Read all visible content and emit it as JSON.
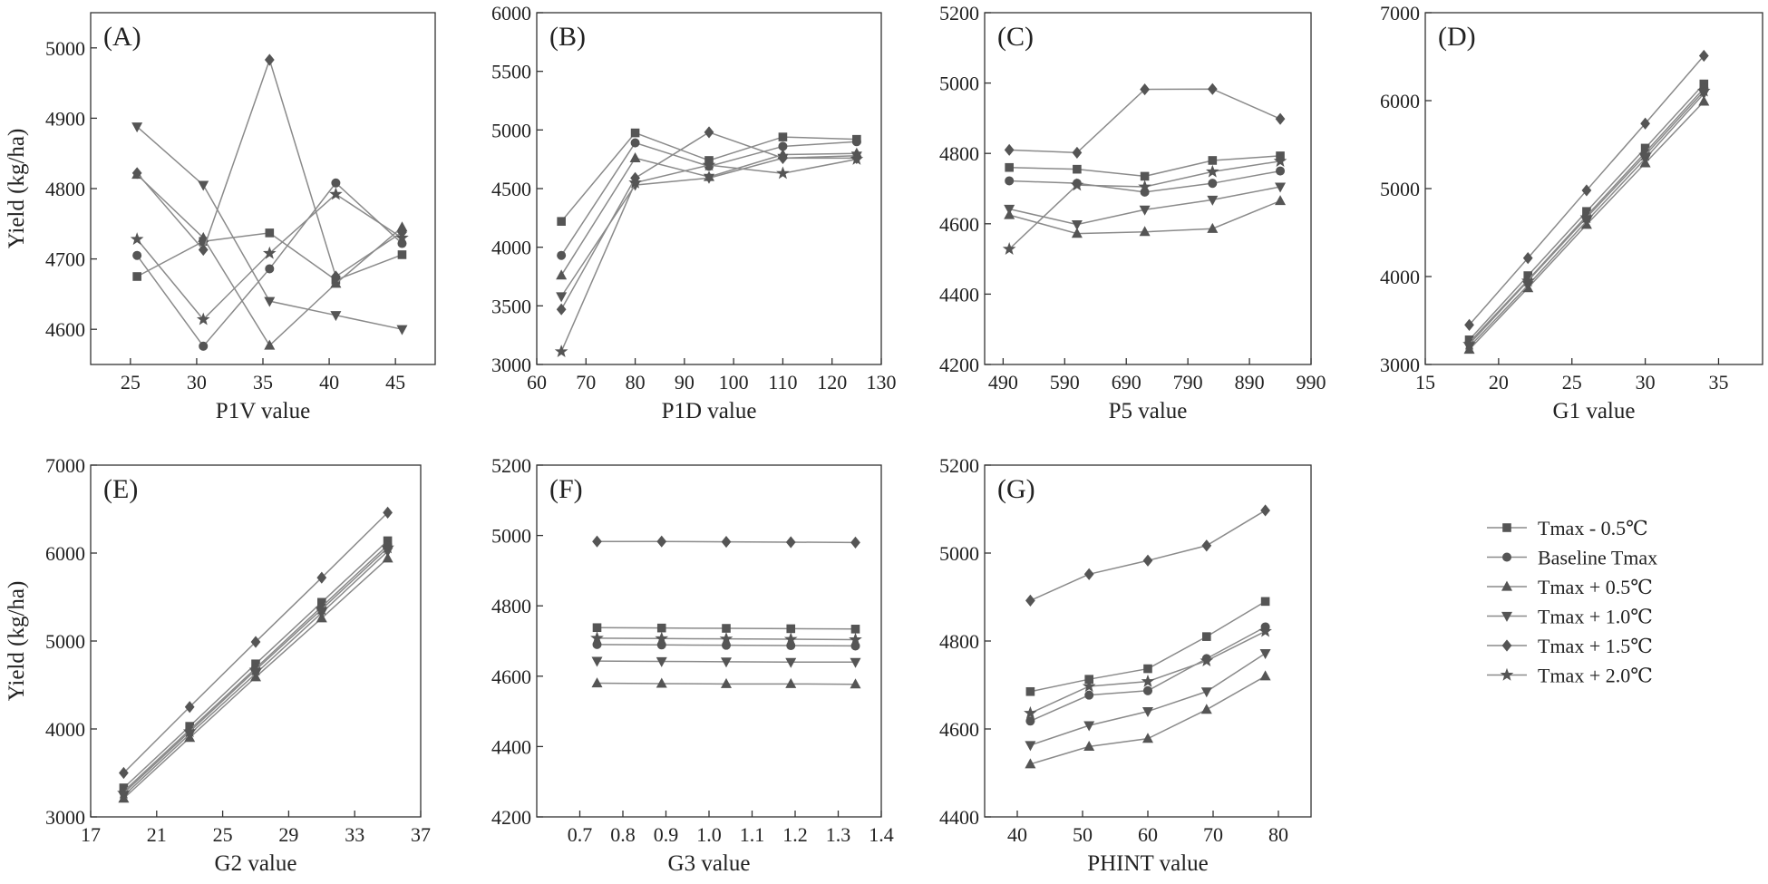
{
  "legend": {
    "entries": [
      {
        "series_index": 0,
        "label": "Tmax - 0.5℃",
        "marker": "square"
      },
      {
        "series_index": 1,
        "label": "Baseline Tmax",
        "marker": "circle"
      },
      {
        "series_index": 2,
        "label": "Tmax + 0.5℃",
        "marker": "triangle-up"
      },
      {
        "series_index": 3,
        "label": "Tmax + 1.0℃",
        "marker": "triangle-down"
      },
      {
        "series_index": 4,
        "label": "Tmax + 1.5℃",
        "marker": "diamond"
      },
      {
        "series_index": 5,
        "label": "Tmax + 2.0℃",
        "marker": "star"
      }
    ]
  },
  "colors": {
    "line": "#8a8a8a",
    "marker": "#555555",
    "axis": "#333333"
  },
  "chart_data": [
    {
      "type": "line",
      "panel_label": "(A)",
      "xlabel": "P1V value",
      "ylabel": "Yield (kg/ha)",
      "xlim": [
        22,
        48
      ],
      "ylim": [
        4550,
        5050
      ],
      "xticks": [
        25,
        30,
        35,
        40,
        45
      ],
      "xtick_labels": [
        "25",
        "30",
        "35",
        "40",
        "45"
      ],
      "yticks": [
        4600,
        4700,
        4800,
        4900,
        5000
      ],
      "ytick_labels": [
        "4600",
        "4700",
        "4800",
        "4900",
        "5000"
      ],
      "x": [
        25.5,
        30.5,
        35.5,
        40.5,
        45.5
      ],
      "series": [
        {
          "name": "Tmax - 0.5℃",
          "values": [
            4675,
            4725,
            4737,
            4670,
            4706
          ]
        },
        {
          "name": "Baseline Tmax",
          "values": [
            4705,
            4576,
            4686,
            4808,
            4722
          ]
        },
        {
          "name": "Tmax + 0.5℃",
          "values": [
            4820,
            4730,
            4577,
            4665,
            4745
          ]
        },
        {
          "name": "Tmax + 1.0℃",
          "values": [
            4888,
            4805,
            4640,
            4620,
            4600
          ]
        },
        {
          "name": "Tmax + 1.5℃",
          "values": [
            4822,
            4713,
            4983,
            4675,
            4738
          ]
        },
        {
          "name": "Tmax + 2.0℃",
          "values": [
            4728,
            4614,
            4708,
            4792,
            4730
          ]
        }
      ]
    },
    {
      "type": "line",
      "panel_label": "(B)",
      "xlabel": "P1D value",
      "ylabel": "",
      "xlim": [
        60,
        130
      ],
      "ylim": [
        3000,
        6000
      ],
      "xticks": [
        60,
        70,
        80,
        90,
        100,
        110,
        120,
        130
      ],
      "xtick_labels": [
        "60",
        "70",
        "80",
        "90",
        "100",
        "110",
        "120",
        "130"
      ],
      "yticks": [
        3000,
        3500,
        4000,
        4500,
        5000,
        5500,
        6000
      ],
      "ytick_labels": [
        "3000",
        "3500",
        "4000",
        "4500",
        "5000",
        "5500",
        "6000"
      ],
      "x": [
        65,
        80,
        95,
        110,
        125
      ],
      "series": [
        {
          "name": "Tmax - 0.5℃",
          "values": [
            4220,
            4975,
            4740,
            4940,
            4920
          ]
        },
        {
          "name": "Baseline Tmax",
          "values": [
            3930,
            4890,
            4690,
            4860,
            4900
          ]
        },
        {
          "name": "Tmax + 0.5℃",
          "values": [
            3760,
            4760,
            4600,
            4790,
            4800
          ]
        },
        {
          "name": "Tmax + 1.0℃",
          "values": [
            3580,
            4530,
            4590,
            4760,
            4780
          ]
        },
        {
          "name": "Tmax + 1.5℃",
          "values": [
            3470,
            4590,
            4980,
            4760,
            4760
          ]
        },
        {
          "name": "Tmax + 2.0℃",
          "values": [
            3110,
            4550,
            4700,
            4630,
            4750
          ]
        }
      ]
    },
    {
      "type": "line",
      "panel_label": "(C)",
      "xlabel": "P5 value",
      "ylabel": "",
      "xlim": [
        460,
        990
      ],
      "ylim": [
        4200,
        5200
      ],
      "xticks": [
        490,
        590,
        690,
        790,
        890,
        990
      ],
      "xtick_labels": [
        "490",
        "590",
        "690",
        "790",
        "890",
        "990"
      ],
      "yticks": [
        4200,
        4400,
        4600,
        4800,
        5000,
        5200
      ],
      "ytick_labels": [
        "4200",
        "4400",
        "4600",
        "4800",
        "5000",
        "5200"
      ],
      "x": [
        500,
        610,
        720,
        830,
        940
      ],
      "series": [
        {
          "name": "Tmax - 0.5℃",
          "values": [
            4760,
            4755,
            4735,
            4780,
            4793
          ]
        },
        {
          "name": "Baseline Tmax",
          "values": [
            4722,
            4715,
            4690,
            4715,
            4750
          ]
        },
        {
          "name": "Tmax + 0.5℃",
          "values": [
            4625,
            4572,
            4577,
            4586,
            4665
          ]
        },
        {
          "name": "Tmax + 1.0℃",
          "values": [
            4642,
            4598,
            4640,
            4668,
            4705
          ]
        },
        {
          "name": "Tmax + 1.5℃",
          "values": [
            4810,
            4802,
            4982,
            4983,
            4898
          ]
        },
        {
          "name": "Tmax + 2.0℃",
          "values": [
            4528,
            4710,
            4705,
            4748,
            4778
          ]
        }
      ]
    },
    {
      "type": "line",
      "panel_label": "(D)",
      "xlabel": "G1 value",
      "ylabel": "",
      "xlim": [
        15,
        38
      ],
      "ylim": [
        3000,
        7000
      ],
      "xticks": [
        15,
        20,
        25,
        30,
        35
      ],
      "xtick_labels": [
        "15",
        "20",
        "25",
        "30",
        "35"
      ],
      "yticks": [
        3000,
        4000,
        5000,
        6000,
        7000
      ],
      "ytick_labels": [
        "3000",
        "4000",
        "5000",
        "6000",
        "7000"
      ],
      "x": [
        18,
        22,
        26,
        30,
        34
      ],
      "series": [
        {
          "name": "Tmax - 0.5℃",
          "values": [
            3280,
            4010,
            4740,
            5460,
            6190
          ]
        },
        {
          "name": "Baseline Tmax",
          "values": [
            3250,
            3960,
            4690,
            5410,
            6140
          ]
        },
        {
          "name": "Tmax + 0.5℃",
          "values": [
            3170,
            3870,
            4590,
            5290,
            5990
          ]
        },
        {
          "name": "Tmax + 1.0℃",
          "values": [
            3200,
            3900,
            4630,
            5340,
            6080
          ]
        },
        {
          "name": "Tmax + 1.5℃",
          "values": [
            3450,
            4210,
            4980,
            5740,
            6510
          ]
        },
        {
          "name": "Tmax + 2.0℃",
          "values": [
            3230,
            3950,
            4670,
            5380,
            6110
          ]
        }
      ]
    },
    {
      "type": "line",
      "panel_label": "(E)",
      "xlabel": "G2 value",
      "ylabel": "Yield (kg/ha)",
      "xlim": [
        17,
        37
      ],
      "ylim": [
        3000,
        7000
      ],
      "xticks": [
        17,
        21,
        25,
        29,
        33,
        37
      ],
      "xtick_labels": [
        "17",
        "21",
        "25",
        "29",
        "33",
        "37"
      ],
      "yticks": [
        3000,
        4000,
        5000,
        6000,
        7000
      ],
      "ytick_labels": [
        "3000",
        "4000",
        "5000",
        "6000",
        "7000"
      ],
      "x": [
        19,
        23,
        27,
        31,
        35
      ],
      "series": [
        {
          "name": "Tmax - 0.5℃",
          "values": [
            3330,
            4030,
            4740,
            5440,
            6140
          ]
        },
        {
          "name": "Baseline Tmax",
          "values": [
            3290,
            3990,
            4690,
            5390,
            6090
          ]
        },
        {
          "name": "Tmax + 0.5℃",
          "values": [
            3210,
            3900,
            4590,
            5260,
            5940
          ]
        },
        {
          "name": "Tmax + 1.0℃",
          "values": [
            3240,
            3940,
            4630,
            5320,
            6020
          ]
        },
        {
          "name": "Tmax + 1.5℃",
          "values": [
            3500,
            4250,
            4990,
            5720,
            6460
          ]
        },
        {
          "name": "Tmax + 2.0℃",
          "values": [
            3270,
            3970,
            4670,
            5360,
            6060
          ]
        }
      ]
    },
    {
      "type": "line",
      "panel_label": "(F)",
      "xlabel": "G3 value",
      "ylabel": "",
      "xlim": [
        0.6,
        1.4
      ],
      "ylim": [
        4200,
        5200
      ],
      "xticks": [
        0.7,
        0.8,
        0.9,
        1.0,
        1.1,
        1.2,
        1.3,
        1.4
      ],
      "xtick_labels": [
        "0.7",
        "0.8",
        "0.9",
        "1.0",
        "1.1",
        "1.2",
        "1.3",
        "1.4"
      ],
      "yticks": [
        4200,
        4400,
        4600,
        4800,
        5000,
        5200
      ],
      "ytick_labels": [
        "4200",
        "4400",
        "4600",
        "4800",
        "5000",
        "5200"
      ],
      "x": [
        0.74,
        0.89,
        1.04,
        1.19,
        1.34
      ],
      "series": [
        {
          "name": "Tmax - 0.5℃",
          "values": [
            4738,
            4737,
            4736,
            4735,
            4734
          ]
        },
        {
          "name": "Baseline Tmax",
          "values": [
            4690,
            4689,
            4688,
            4687,
            4686
          ]
        },
        {
          "name": "Tmax + 0.5℃",
          "values": [
            4580,
            4579,
            4578,
            4578,
            4577
          ]
        },
        {
          "name": "Tmax + 1.0℃",
          "values": [
            4643,
            4642,
            4641,
            4640,
            4640
          ]
        },
        {
          "name": "Tmax + 1.5℃",
          "values": [
            4983,
            4983,
            4982,
            4981,
            4980
          ]
        },
        {
          "name": "Tmax + 2.0℃",
          "values": [
            4708,
            4707,
            4706,
            4705,
            4704
          ]
        }
      ]
    },
    {
      "type": "line",
      "panel_label": "(G)",
      "xlabel": "PHINT value",
      "ylabel": "",
      "xlim": [
        35,
        85
      ],
      "ylim": [
        4400,
        5200
      ],
      "xticks": [
        40,
        50,
        60,
        70,
        80
      ],
      "xtick_labels": [
        "40",
        "50",
        "60",
        "70",
        "80"
      ],
      "yticks": [
        4400,
        4600,
        4800,
        5000,
        5200
      ],
      "ytick_labels": [
        "4400",
        "4600",
        "4800",
        "5000",
        "5200"
      ],
      "x": [
        42,
        51,
        60,
        69,
        78
      ],
      "series": [
        {
          "name": "Tmax - 0.5℃",
          "values": [
            4685,
            4713,
            4737,
            4810,
            4890
          ]
        },
        {
          "name": "Baseline Tmax",
          "values": [
            4618,
            4677,
            4687,
            4760,
            4832
          ]
        },
        {
          "name": "Tmax + 0.5℃",
          "values": [
            4520,
            4560,
            4578,
            4644,
            4720
          ]
        },
        {
          "name": "Tmax + 1.0℃",
          "values": [
            4563,
            4608,
            4640,
            4685,
            4772
          ]
        },
        {
          "name": "Tmax + 1.5℃",
          "values": [
            4892,
            4952,
            4983,
            5017,
            5097
          ]
        },
        {
          "name": "Tmax + 2.0℃",
          "values": [
            4636,
            4697,
            4708,
            4755,
            4822
          ]
        }
      ]
    }
  ]
}
